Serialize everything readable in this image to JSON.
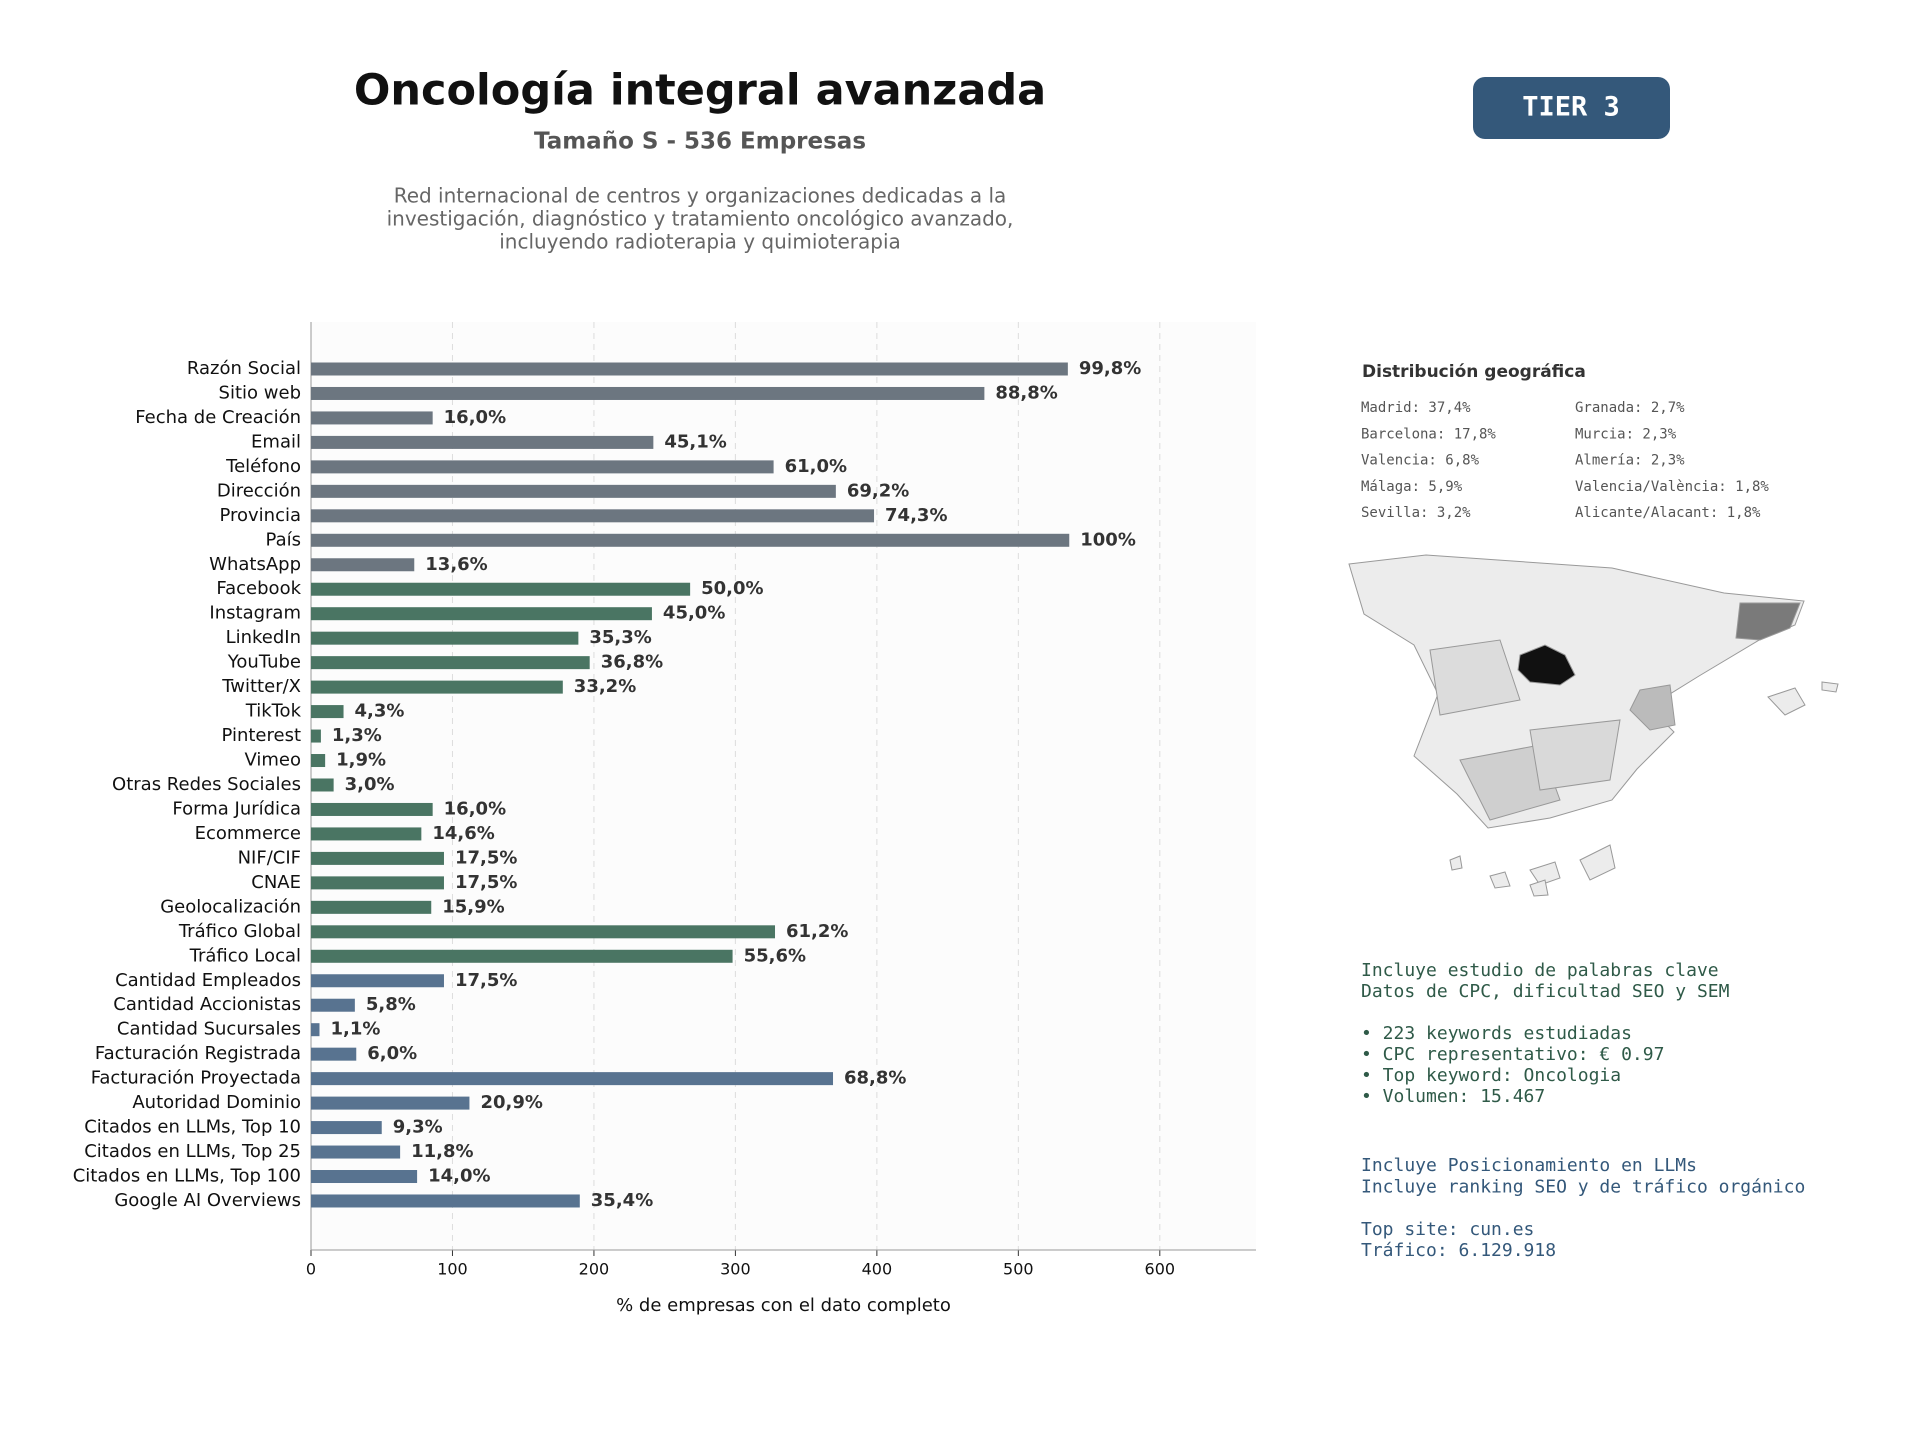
{
  "header": {
    "title": "Oncología integral avanzada",
    "subtitle": "Tamaño S - 536 Empresas",
    "description": [
      "Red internacional de centros y organizaciones dedicadas a la",
      "investigación, diagnóstico y tratamiento oncológico avanzado,",
      "incluyendo radioterapia y quimioterapia"
    ]
  },
  "badge": "TIER 3",
  "chart_data": {
    "type": "barh",
    "categories": [
      "Razón Social",
      "Sitio web",
      "Fecha de Creación",
      "Email",
      "Teléfono",
      "Dirección",
      "Provincia",
      "País",
      "WhatsApp",
      "Facebook",
      "Instagram",
      "LinkedIn",
      "YouTube",
      "Twitter/X",
      "TikTok",
      "Pinterest",
      "Vimeo",
      "Otras Redes Sociales",
      "Forma Jurídica",
      "Ecommerce",
      "NIF/CIF",
      "CNAE",
      "Geolocalización",
      "Tráfico Global",
      "Tráfico Local",
      "Cantidad Empleados",
      "Cantidad Accionistas",
      "Cantidad Sucursales",
      "Facturación Registrada",
      "Facturación Proyectada",
      "Autoridad Dominio",
      "Citados en LLMs, Top 10",
      "Citados en LLMs, Top 25",
      "Citados en LLMs, Top 100",
      "Google AI Overviews"
    ],
    "values": [
      535,
      476,
      86,
      242,
      327,
      371,
      398,
      536,
      73,
      268,
      241,
      189,
      197,
      178,
      23,
      7,
      10,
      16,
      86,
      78,
      94,
      94,
      85,
      328,
      298,
      94,
      31,
      6,
      32,
      369,
      112,
      50,
      63,
      75,
      190
    ],
    "value_labels": [
      "99,8%",
      "88,8%",
      "16,0%",
      "45,1%",
      "61,0%",
      "69,2%",
      "74,3%",
      "100%",
      "13,6%",
      "50,0%",
      "45,0%",
      "35,3%",
      "36,8%",
      "33,2%",
      "4,3%",
      "1,3%",
      "1,9%",
      "3,0%",
      "16,0%",
      "14,6%",
      "17,5%",
      "17,5%",
      "15,9%",
      "61,2%",
      "55,6%",
      "17,5%",
      "5,8%",
      "1,1%",
      "6,0%",
      "68,8%",
      "20,9%",
      "9,3%",
      "11,8%",
      "14,0%",
      "35,4%"
    ],
    "colors": [
      "#6c7680",
      "#6c7680",
      "#6c7680",
      "#6c7680",
      "#6c7680",
      "#6c7680",
      "#6c7680",
      "#6c7680",
      "#6c7680",
      "#4a7563",
      "#4a7563",
      "#4a7563",
      "#4a7563",
      "#4a7563",
      "#4a7563",
      "#4a7563",
      "#4a7563",
      "#4a7563",
      "#4a7563",
      "#4a7563",
      "#4a7563",
      "#4a7563",
      "#4a7563",
      "#4a7563",
      "#4a7563",
      "#587390",
      "#587390",
      "#587390",
      "#587390",
      "#587390",
      "#587390",
      "#587390",
      "#587390",
      "#587390",
      "#587390"
    ],
    "xlim": [
      0,
      668
    ],
    "xticks": [
      0,
      100,
      200,
      300,
      400,
      500,
      600
    ],
    "grid": true,
    "xlabel": "% de empresas con el dato completo"
  },
  "side": {
    "geo_title": "Distribución geográfica",
    "geo_left": [
      "Madrid: 37,4%",
      "Barcelona: 17,8%",
      "Valencia: 6,8%",
      "Málaga: 5,9%",
      "Sevilla: 3,2%"
    ],
    "geo_right": [
      "Granada: 2,7%",
      "Murcia: 2,3%",
      "Almería: 2,3%",
      "Valencia/València: 1,8%",
      "Alicante/Alacant: 1,8%"
    ],
    "seo": [
      "Incluye estudio de palabras clave",
      "Datos de CPC, dificultad SEO y SEM",
      "",
      "• 223 keywords estudiadas",
      "• CPC representativo: € 0.97",
      "• Top keyword: Oncologia",
      "• Volumen: 15.467"
    ],
    "llm": [
      "Incluye Posicionamiento en LLMs",
      "Incluye ranking SEO y de tráfico orgánico",
      "",
      "Top site: cun.es",
      "Tráfico: 6.129.918"
    ]
  }
}
